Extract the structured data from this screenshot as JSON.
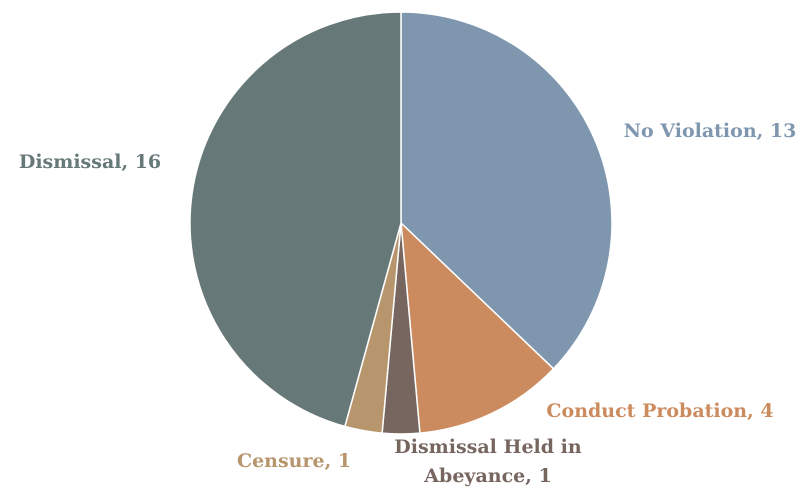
{
  "chart_data": {
    "type": "pie",
    "start_angle_deg": 0,
    "direction": "clockwise",
    "title": "",
    "slices": [
      {
        "label": "No Violation",
        "value": 13,
        "display": "No Violation, 13",
        "color": "#7f97ae"
      },
      {
        "label": "Conduct Probation",
        "value": 4,
        "display": "Conduct Probation, 4",
        "color": "#cc8b5e"
      },
      {
        "label": "Dismissal Held in Abeyance",
        "value": 1,
        "display": "Dismissal Held in Abeyance, 1",
        "color": "#776660"
      },
      {
        "label": "Censure",
        "value": 1,
        "display": "Censure, 1",
        "color": "#b7956d"
      },
      {
        "label": "Dismissal",
        "value": 16,
        "display": "Dismissal, 16",
        "color": "#667877"
      }
    ]
  }
}
